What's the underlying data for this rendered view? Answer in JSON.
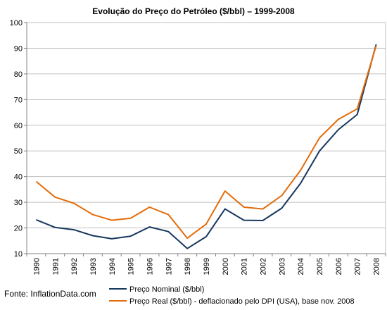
{
  "chart_data": {
    "type": "line",
    "title": "Evolução do Preço do Petróleo ($/bbl) – 1999-2008",
    "xlabel": "",
    "ylabel": "",
    "ylim": [
      10,
      100
    ],
    "yticks": [
      "10",
      "20",
      "30",
      "40",
      "50",
      "60",
      "70",
      "80",
      "90",
      "100"
    ],
    "x": [
      "1990",
      "1991",
      "1992",
      "1993",
      "1994",
      "1995",
      "1996",
      "1997",
      "1998",
      "1999",
      "2000",
      "2001",
      "2002",
      "2003",
      "2004",
      "2005",
      "2006",
      "2007",
      "2008"
    ],
    "series": [
      {
        "name": "Preço Nominal ($/bbl)",
        "color": "#17375e",
        "values": [
          23.2,
          20.2,
          19.3,
          17.0,
          15.8,
          16.8,
          20.4,
          18.6,
          12.0,
          16.6,
          27.4,
          23.0,
          22.9,
          27.7,
          37.4,
          50.0,
          58.3,
          64.2,
          91.5
        ]
      },
      {
        "name": "Preço Real ($/bbl) - deflacionado pelo DPI (USA), base nov. 2008",
        "color": "#e46c0a",
        "values": [
          38.1,
          32.0,
          29.6,
          25.2,
          23.0,
          23.8,
          28.1,
          25.2,
          16.0,
          21.5,
          34.4,
          28.1,
          27.4,
          32.6,
          42.5,
          55.1,
          62.3,
          66.4,
          91.0
        ]
      }
    ],
    "grid": "horizontal",
    "legend_position": "bottom",
    "source": "Fonte: InflationData.com"
  }
}
